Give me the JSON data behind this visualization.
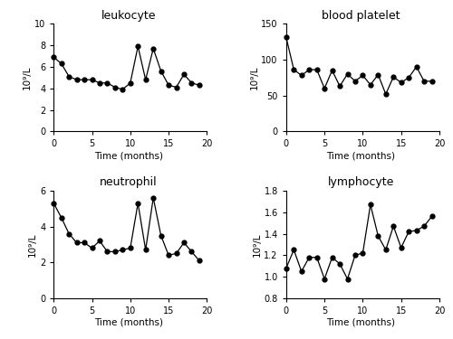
{
  "leukocyte": {
    "title": "leukocyte",
    "ylabel": "10⁹/L",
    "xlabel": "Time (months)",
    "x": [
      0,
      1,
      2,
      3,
      4,
      5,
      6,
      7,
      8,
      9,
      10,
      11,
      12,
      13,
      14,
      15,
      16,
      17,
      18,
      19
    ],
    "y": [
      6.9,
      6.3,
      5.1,
      4.8,
      4.8,
      4.8,
      4.5,
      4.5,
      4.1,
      3.9,
      4.5,
      7.9,
      4.8,
      7.7,
      5.6,
      4.3,
      4.1,
      5.3,
      4.5,
      4.3
    ],
    "ylim": [
      0,
      10
    ],
    "yticks": [
      0,
      2,
      4,
      6,
      8,
      10
    ],
    "xlim": [
      -0.5,
      20
    ],
    "xticks": [
      0,
      5,
      10,
      15,
      20
    ]
  },
  "blood_platelet": {
    "title": "blood platelet",
    "ylabel": "10⁹/L",
    "xlabel": "Time (months)",
    "x": [
      0,
      1,
      2,
      3,
      4,
      5,
      6,
      7,
      8,
      9,
      10,
      11,
      12,
      13,
      14,
      15,
      16,
      17,
      18,
      19
    ],
    "y": [
      131,
      86,
      78,
      86,
      86,
      60,
      85,
      63,
      80,
      70,
      78,
      65,
      79,
      52,
      76,
      68,
      75,
      90,
      70,
      70
    ],
    "ylim": [
      0,
      150
    ],
    "yticks": [
      0,
      50,
      100,
      150
    ],
    "xlim": [
      -0.5,
      20
    ],
    "xticks": [
      0,
      5,
      10,
      15,
      20
    ]
  },
  "neutrophil": {
    "title": "neutrophil",
    "ylabel": "10⁹/L",
    "xlabel": "Time (months)",
    "x": [
      0,
      1,
      2,
      3,
      4,
      5,
      6,
      7,
      8,
      9,
      10,
      11,
      12,
      13,
      14,
      15,
      16,
      17,
      18,
      19
    ],
    "y": [
      5.3,
      4.5,
      3.6,
      3.1,
      3.1,
      2.8,
      3.2,
      2.6,
      2.6,
      2.7,
      2.8,
      5.3,
      2.7,
      5.6,
      3.5,
      2.4,
      2.5,
      3.1,
      2.6,
      2.1
    ],
    "ylim": [
      0,
      6
    ],
    "yticks": [
      0,
      2,
      4,
      6
    ],
    "xlim": [
      -0.5,
      20
    ],
    "xticks": [
      0,
      5,
      10,
      15,
      20
    ]
  },
  "lymphocyte": {
    "title": "lymphocyte",
    "ylabel": "10⁹/L",
    "xlabel": "Time (months)",
    "x": [
      0,
      1,
      2,
      3,
      4,
      5,
      6,
      7,
      8,
      9,
      10,
      11,
      12,
      13,
      14,
      15,
      16,
      17,
      18,
      19
    ],
    "y": [
      1.08,
      1.25,
      1.05,
      1.18,
      1.18,
      0.98,
      1.18,
      1.12,
      0.98,
      1.2,
      1.22,
      1.67,
      1.38,
      1.25,
      1.47,
      1.27,
      1.42,
      1.43,
      1.47,
      1.56
    ],
    "ylim": [
      0.8,
      1.8
    ],
    "yticks": [
      0.8,
      1.0,
      1.2,
      1.4,
      1.6,
      1.8
    ],
    "xlim": [
      -0.5,
      20
    ],
    "xticks": [
      0,
      5,
      10,
      15,
      20
    ]
  },
  "line_color": "#000000",
  "marker": "o",
  "marker_size": 3.5,
  "line_width": 0.9,
  "title_fontsize": 9,
  "label_fontsize": 7.5,
  "tick_fontsize": 7,
  "background_color": "#ffffff"
}
